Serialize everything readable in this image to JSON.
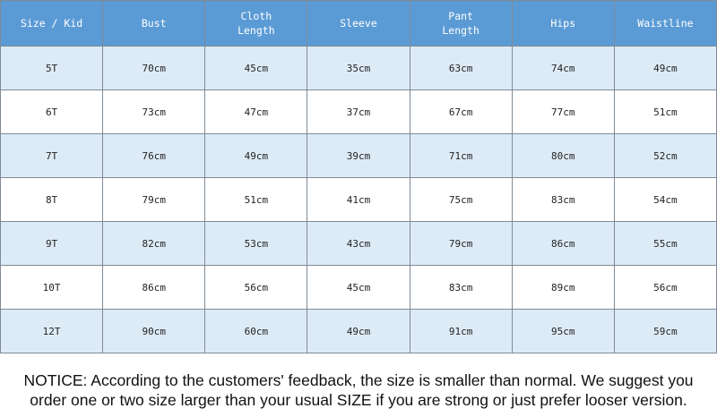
{
  "table": {
    "headers": [
      [
        "Size / Kid"
      ],
      [
        "Bust"
      ],
      [
        "Cloth",
        "Length"
      ],
      [
        "Sleeve"
      ],
      [
        "Pant",
        "Length"
      ],
      [
        "Hips"
      ],
      [
        "Waistline"
      ]
    ],
    "rows": [
      [
        "5T",
        "70cm",
        "45cm",
        "35cm",
        "63cm",
        "74cm",
        "49cm"
      ],
      [
        "6T",
        "73cm",
        "47cm",
        "37cm",
        "67cm",
        "77cm",
        "51cm"
      ],
      [
        "7T",
        "76cm",
        "49cm",
        "39cm",
        "71cm",
        "80cm",
        "52cm"
      ],
      [
        "8T",
        "79cm",
        "51cm",
        "41cm",
        "75cm",
        "83cm",
        "54cm"
      ],
      [
        "9T",
        "82cm",
        "53cm",
        "43cm",
        "79cm",
        "86cm",
        "55cm"
      ],
      [
        "10T",
        "86cm",
        "56cm",
        "45cm",
        "83cm",
        "89cm",
        "56cm"
      ],
      [
        "12T",
        "90cm",
        "60cm",
        "49cm",
        "91cm",
        "95cm",
        "59cm"
      ]
    ]
  },
  "notice": {
    "line1": "NOTICE: According to the customers' feedback, the size is smaller than normal. We suggest you",
    "line2": "order one or two size larger than your usual SIZE if you are strong or just prefer looser version."
  },
  "colors": {
    "header_bg": "#5b9bd5",
    "stripe_bg": "#ddebf7",
    "border": "#7f8a96"
  }
}
